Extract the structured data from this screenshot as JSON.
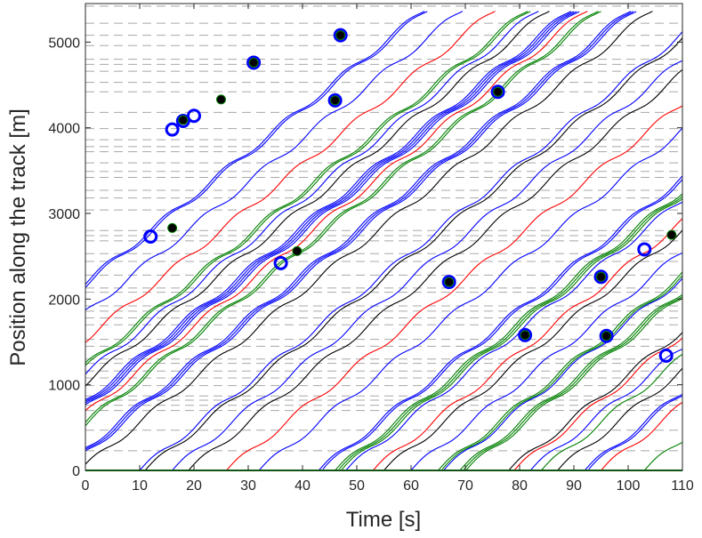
{
  "chart_data": {
    "type": "line",
    "title": "",
    "xlabel": "Time [s]",
    "ylabel": "Position along the track [m]",
    "xlim": [
      0,
      110
    ],
    "ylim": [
      0,
      5450
    ],
    "xticks": [
      0,
      10,
      20,
      30,
      40,
      50,
      60,
      70,
      80,
      90,
      100,
      110
    ],
    "yticks": [
      0,
      1000,
      2000,
      3000,
      4000,
      5000
    ],
    "grid": "horizontal dashed station lines",
    "station_positions": [
      230,
      470,
      700,
      760,
      820,
      870,
      990,
      1080,
      1160,
      1250,
      1300,
      1450,
      1530,
      1700,
      1780,
      1860,
      1920,
      2080,
      2130,
      2280,
      2440,
      2530,
      2680,
      2740,
      2800,
      3040,
      3180,
      3270,
      3420,
      3490,
      3590,
      3720,
      3780,
      3860,
      3990,
      4180,
      4420,
      4530,
      4660,
      4740,
      4800,
      4960,
      5080,
      5220,
      5420
    ],
    "series_colors": {
      "blue": "#0000ff",
      "black": "#000000",
      "red": "#ff0000",
      "green": "#008000"
    },
    "series": [
      {
        "color": "blue",
        "t0": -43,
        "n": 2
      },
      {
        "color": "blue",
        "t0": -36,
        "n": 1
      },
      {
        "color": "red",
        "t0": -30,
        "n": 1
      },
      {
        "color": "green",
        "t0": -24,
        "n": 2
      },
      {
        "color": "blue",
        "t0": -22,
        "n": 1
      },
      {
        "color": "black",
        "t0": -20,
        "n": 1
      },
      {
        "color": "blue",
        "t0": -16,
        "n": 4
      },
      {
        "color": "red",
        "t0": -13,
        "n": 1
      },
      {
        "color": "green",
        "t0": -11,
        "n": 2
      },
      {
        "color": "blue",
        "t0": -5,
        "n": 3
      },
      {
        "color": "black",
        "t0": -1,
        "n": 1
      },
      {
        "color": "blue",
        "t0": 10,
        "n": 1
      },
      {
        "color": "black",
        "t0": 11,
        "n": 1
      },
      {
        "color": "blue",
        "t0": 16,
        "n": 1
      },
      {
        "color": "black",
        "t0": 19,
        "n": 1
      },
      {
        "color": "red",
        "t0": 26,
        "n": 1
      },
      {
        "color": "blue",
        "t0": 32,
        "n": 1
      },
      {
        "color": "blue",
        "t0": 43,
        "n": 2
      },
      {
        "color": "green",
        "t0": 46,
        "n": 3
      },
      {
        "color": "blue",
        "t0": 48,
        "n": 1
      },
      {
        "color": "red",
        "t0": 53,
        "n": 1
      },
      {
        "color": "black",
        "t0": 55,
        "n": 1
      },
      {
        "color": "blue",
        "t0": 60,
        "n": 1
      },
      {
        "color": "green",
        "t0": 65,
        "n": 2
      },
      {
        "color": "blue",
        "t0": 66,
        "n": 1
      },
      {
        "color": "green",
        "t0": 69,
        "n": 3
      },
      {
        "color": "black",
        "t0": 78,
        "n": 1
      },
      {
        "color": "red",
        "t0": 79,
        "n": 1
      },
      {
        "color": "blue",
        "t0": 82,
        "n": 1
      },
      {
        "color": "green",
        "t0": 84,
        "n": 1
      },
      {
        "color": "black",
        "t0": 87,
        "n": 1
      },
      {
        "color": "blue",
        "t0": 92,
        "n": 2
      },
      {
        "color": "red",
        "t0": 95,
        "n": 1
      },
      {
        "color": "green",
        "t0": 103,
        "n": 1
      }
    ],
    "markers_blue_ring": [
      [
        12,
        2730
      ],
      [
        16,
        3980
      ],
      [
        18,
        4080
      ],
      [
        20,
        4140
      ],
      [
        31,
        4760
      ],
      [
        36,
        2420
      ],
      [
        46,
        4320
      ],
      [
        47,
        5080
      ],
      [
        67,
        2200
      ],
      [
        76,
        4420
      ],
      [
        81,
        1580
      ],
      [
        95,
        2260
      ],
      [
        96,
        1570
      ],
      [
        103,
        2580
      ],
      [
        107,
        1340
      ]
    ],
    "markers_black_dot": [
      [
        16,
        2830
      ],
      [
        18,
        4090
      ],
      [
        25,
        4330
      ],
      [
        31,
        4760
      ],
      [
        39,
        2560
      ],
      [
        46,
        4320
      ],
      [
        47,
        5080
      ],
      [
        67,
        2200
      ],
      [
        76,
        4420
      ],
      [
        81,
        1580
      ],
      [
        95,
        2260
      ],
      [
        96,
        1570
      ],
      [
        108,
        2750
      ]
    ]
  }
}
